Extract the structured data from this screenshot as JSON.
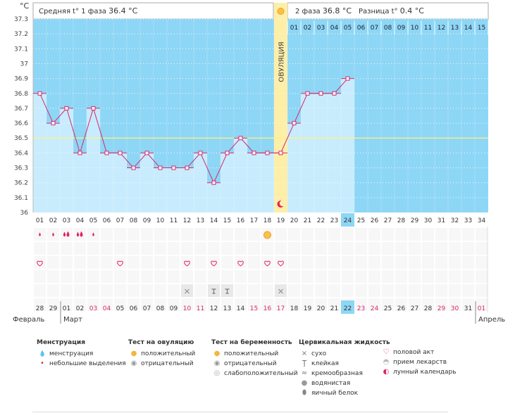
{
  "header": {
    "phase1_label": "Средняя t° 1 фаза",
    "phase1_value": "36.4 °C",
    "phase2_label": "2 фаза",
    "phase2_value": "36.8 °C",
    "diff_label": "Разница t°",
    "diff_value": "0.4 °C",
    "ovulation_label": "ОВУЛЯЦИЯ",
    "unit": "°C"
  },
  "chart_data": {
    "type": "bar",
    "ylim": [
      36,
      37.3
    ],
    "yticks": [
      "36",
      "36.1",
      "36.2",
      "36.3",
      "36.4",
      "36.5",
      "36.6",
      "36.7",
      "36.8",
      "36.9",
      "37",
      "37.1",
      "37.2",
      "37.3"
    ],
    "coverline": 36.5,
    "cycle_days": [
      "01",
      "02",
      "03",
      "04",
      "05",
      "06",
      "07",
      "08",
      "09",
      "10",
      "11",
      "12",
      "13",
      "14",
      "15",
      "16",
      "17",
      "18",
      "19",
      "20",
      "21",
      "22",
      "23",
      "24",
      "25",
      "26",
      "27",
      "28",
      "29",
      "30",
      "31",
      "32",
      "33",
      "34"
    ],
    "current_day": "24",
    "ovulation_day": "19",
    "temperatures": [
      36.8,
      36.6,
      36.7,
      36.4,
      36.7,
      36.4,
      36.4,
      36.3,
      36.4,
      36.3,
      36.3,
      36.3,
      36.4,
      36.2,
      36.4,
      36.5,
      36.4,
      36.4,
      36.4,
      36.6,
      36.8,
      36.8,
      36.8,
      36.9
    ],
    "luteal_days": [
      "01",
      "02",
      "03",
      "04",
      "05",
      "06",
      "07",
      "08",
      "09",
      "10",
      "11",
      "12",
      "13",
      "14",
      "15"
    ],
    "dates": [
      "28",
      "29",
      "01",
      "02",
      "03",
      "04",
      "05",
      "06",
      "07",
      "08",
      "09",
      "10",
      "11",
      "12",
      "13",
      "14",
      "15",
      "16",
      "17",
      "18",
      "19",
      "20",
      "21",
      "22",
      "23",
      "24",
      "25",
      "26",
      "27",
      "28",
      "29",
      "30",
      "31",
      "01"
    ],
    "weekend_dates": [
      4,
      5,
      11,
      12,
      16,
      17,
      18,
      24,
      25,
      30,
      31,
      33
    ],
    "today_date_index": 23,
    "months": [
      "Февраль",
      "Март",
      "Апрель"
    ],
    "menstruation_days": {
      "0": "small",
      "1": "small",
      "2": "heavy",
      "3": "heavy",
      "4": "small"
    },
    "ovulation_test_day": 17,
    "intercourse_days": [
      0,
      6,
      11,
      13,
      15,
      17,
      18
    ],
    "cervical_days": {
      "11": "x",
      "13": "t",
      "14": "t",
      "18": "x"
    }
  },
  "colors": {
    "sky": "#8ed6f5",
    "bar": "#c8ecfd",
    "line": "#d42a6e",
    "ovulation": "#fdeea8",
    "coverline": "#fff27a",
    "weekend": "#d42a6e"
  },
  "legend": {
    "groups": [
      {
        "title": "Менструация",
        "items": [
          {
            "icon": "menstruation-icon",
            "label": "менструация"
          },
          {
            "icon": "spotting-icon",
            "label": "небольшие выделения"
          }
        ]
      },
      {
        "title": "Тест на овуляцию",
        "items": [
          {
            "icon": "positive-icon",
            "label": "положительный"
          },
          {
            "icon": "negative-icon",
            "label": "отрицательный"
          }
        ]
      },
      {
        "title": "Тест на беременность",
        "items": [
          {
            "icon": "positive-icon",
            "label": "положительный"
          },
          {
            "icon": "negative-icon",
            "label": "отрицательный"
          },
          {
            "icon": "weak-positive-icon",
            "label": "слабоположительный"
          }
        ]
      },
      {
        "title": "Цервикальная жидкость",
        "items": [
          {
            "icon": "dry-icon",
            "label": "сухо"
          },
          {
            "icon": "sticky-icon",
            "label": "клейкая"
          },
          {
            "icon": "creamy-icon",
            "label": "кремообразная"
          },
          {
            "icon": "watery-icon",
            "label": "водянистая"
          },
          {
            "icon": "eggwhite-icon",
            "label": "яичный белок"
          }
        ]
      },
      {
        "title": "",
        "items": [
          {
            "icon": "heart-icon",
            "label": "половой акт"
          },
          {
            "icon": "pill-icon",
            "label": "прием лекарств"
          },
          {
            "icon": "moon-icon",
            "label": "лунный календарь"
          }
        ]
      }
    ]
  }
}
